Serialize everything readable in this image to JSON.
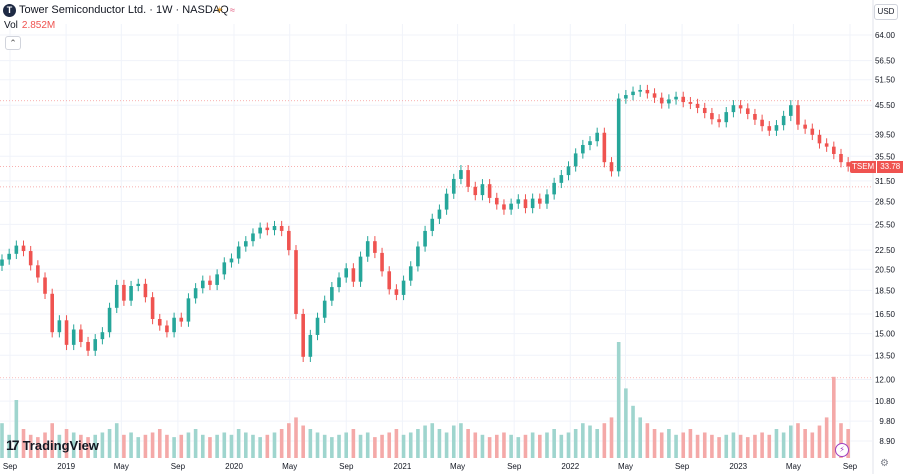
{
  "header": {
    "logo_letter": "T",
    "title": "Tower Semiconductor Ltd. · 1W · NASDAQ",
    "indicator1": "☀",
    "indicator2": "≈",
    "volume_label": "Vol",
    "volume_value": "2.852M",
    "collapse_glyph": "⌃"
  },
  "currency": "USD",
  "last_price": {
    "symbol": "TSEM",
    "value": "33.78"
  },
  "branding": {
    "mark": "17",
    "name": "TradingView"
  },
  "footer": {
    "gear": "⚙"
  },
  "colors": {
    "up": "#26a69a",
    "down": "#ef5350",
    "vol_up": "#9fd5ce",
    "vol_down": "#f4a9a8",
    "grid": "#f0f3fa",
    "axis_text": "#131722"
  },
  "chart_data": {
    "type": "candlestick",
    "title": "Tower Semiconductor Ltd. · 1W · NASDAQ",
    "scale": "log",
    "y_ticks": [
      8.9,
      9.8,
      10.8,
      12.0,
      13.5,
      15.0,
      16.5,
      18.5,
      20.5,
      22.5,
      25.5,
      28.5,
      31.5,
      35.5,
      39.5,
      45.5,
      51.5,
      56.5,
      64.0
    ],
    "x_ticks": [
      "Sep",
      "2019",
      "May",
      "Sep",
      "2020",
      "May",
      "Sep",
      "2021",
      "May",
      "Sep",
      "2022",
      "May",
      "Sep",
      "2023",
      "May",
      "Sep"
    ],
    "x_tick_dates": [
      "2018-09-01",
      "2019-01-01",
      "2019-05-01",
      "2019-09-01",
      "2020-01-01",
      "2020-05-01",
      "2020-09-01",
      "2021-01-01",
      "2021-05-01",
      "2021-09-01",
      "2022-01-01",
      "2022-05-01",
      "2022-09-01",
      "2023-01-01",
      "2023-05-01",
      "2023-09-01"
    ],
    "reference_levels": [
      46.5,
      33.78,
      30.6,
      12.1
    ],
    "price_close": [
      21.5,
      22.1,
      23.0,
      22.4,
      20.9,
      19.7,
      18.2,
      15.1,
      16.0,
      14.2,
      15.3,
      14.4,
      13.8,
      14.6,
      15.1,
      17.0,
      19.0,
      17.6,
      18.9,
      19.1,
      17.9,
      16.1,
      15.6,
      15.1,
      16.2,
      15.9,
      17.8,
      18.7,
      19.4,
      19.0,
      20.0,
      21.2,
      21.6,
      22.9,
      23.5,
      24.4,
      25.1,
      24.8,
      25.3,
      24.7,
      22.5,
      16.5,
      13.4,
      14.9,
      16.2,
      17.6,
      18.8,
      19.7,
      20.6,
      19.3,
      21.8,
      23.5,
      22.2,
      20.3,
      18.6,
      18.1,
      19.4,
      20.8,
      22.9,
      24.7,
      26.2,
      27.4,
      29.6,
      31.8,
      33.2,
      30.6,
      29.4,
      31.0,
      29.0,
      28.1,
      27.4,
      28.2,
      28.8,
      27.6,
      28.9,
      28.2,
      29.5,
      31.2,
      32.4,
      33.8,
      36.0,
      37.5,
      38.2,
      39.8,
      34.5,
      33.0,
      47.0,
      47.8,
      48.6,
      49.0,
      48.2,
      47.2,
      45.9,
      46.8,
      47.4,
      46.2,
      45.8,
      44.9,
      43.8,
      42.5,
      41.9,
      44.0,
      45.5,
      44.8,
      43.6,
      42.4,
      41.1,
      40.2,
      41.3,
      43.2,
      45.5,
      41.4,
      40.6,
      39.4,
      37.8,
      37.2,
      35.9,
      34.5,
      33.8
    ],
    "volume_rel": [
      0.3,
      0.2,
      0.5,
      0.25,
      0.2,
      0.18,
      0.22,
      0.3,
      0.2,
      0.25,
      0.22,
      0.2,
      0.18,
      0.2,
      0.22,
      0.25,
      0.3,
      0.2,
      0.22,
      0.18,
      0.2,
      0.22,
      0.25,
      0.2,
      0.18,
      0.2,
      0.22,
      0.25,
      0.2,
      0.18,
      0.2,
      0.22,
      0.2,
      0.25,
      0.22,
      0.2,
      0.18,
      0.2,
      0.22,
      0.25,
      0.3,
      0.35,
      0.28,
      0.25,
      0.22,
      0.2,
      0.18,
      0.2,
      0.22,
      0.25,
      0.2,
      0.22,
      0.18,
      0.2,
      0.22,
      0.25,
      0.2,
      0.22,
      0.25,
      0.28,
      0.3,
      0.25,
      0.22,
      0.28,
      0.3,
      0.25,
      0.22,
      0.2,
      0.18,
      0.2,
      0.22,
      0.2,
      0.18,
      0.2,
      0.22,
      0.2,
      0.22,
      0.25,
      0.2,
      0.22,
      0.25,
      0.3,
      0.28,
      0.25,
      0.3,
      0.35,
      1.0,
      0.6,
      0.45,
      0.35,
      0.3,
      0.25,
      0.22,
      0.25,
      0.2,
      0.22,
      0.25,
      0.2,
      0.22,
      0.2,
      0.18,
      0.2,
      0.22,
      0.2,
      0.18,
      0.2,
      0.22,
      0.2,
      0.25,
      0.22,
      0.28,
      0.3,
      0.25,
      0.22,
      0.28,
      0.35,
      0.7,
      0.3,
      0.25
    ]
  }
}
